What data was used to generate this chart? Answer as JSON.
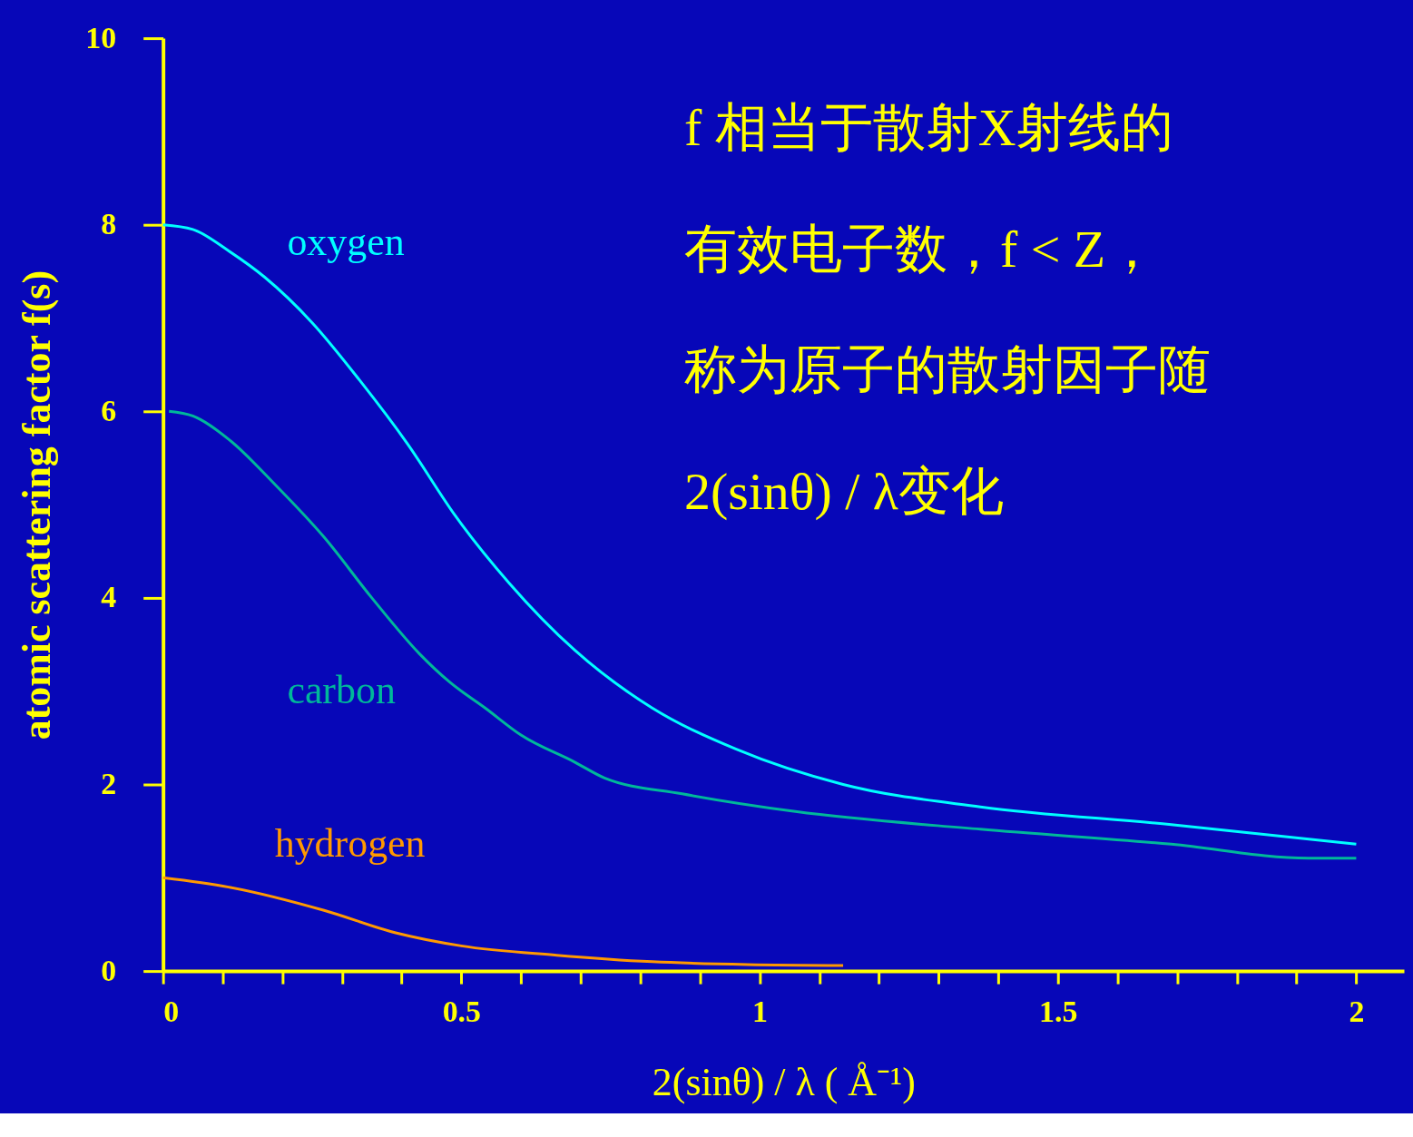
{
  "chart_data": {
    "type": "line",
    "xlabel": "2(sinθ) / λ ( Å⁻¹)",
    "ylabel": "atomic scattering factor  f(s)",
    "xlim": [
      0,
      2.08
    ],
    "ylim": [
      0,
      10
    ],
    "xticks": [
      0,
      {
        "value": 0.1,
        "label": null
      },
      {
        "value": 0.2,
        "label": null
      },
      {
        "value": 0.3,
        "label": null
      },
      {
        "value": 0.4,
        "label": null
      },
      0.5,
      {
        "value": 0.6,
        "label": null
      },
      {
        "value": 0.7,
        "label": null
      },
      {
        "value": 0.8,
        "label": null
      },
      {
        "value": 0.9,
        "label": null
      },
      1,
      {
        "value": 1.1,
        "label": null
      },
      {
        "value": 1.2,
        "label": null
      },
      {
        "value": 1.3,
        "label": null
      },
      {
        "value": 1.4,
        "label": null
      },
      1.5,
      {
        "value": 1.6,
        "label": null
      },
      {
        "value": 1.7,
        "label": null
      },
      {
        "value": 1.8,
        "label": null
      },
      {
        "value": 1.9,
        "label": null
      },
      2
    ],
    "yticks": [
      0,
      2,
      4,
      6,
      8,
      10
    ],
    "grid": false,
    "legend": false,
    "marker": "none",
    "line_style": "solid",
    "annotations": [
      "f 相当于散射X射线的",
      "有效电子数，f < Z，",
      "称为原子的散射因子随",
      "2(sinθ) / λ变化"
    ],
    "series": [
      {
        "name": "oxygen",
        "color": "#00ffff",
        "x": [
          0,
          0.05,
          0.11,
          0.17,
          0.25,
          0.33,
          0.41,
          0.49,
          0.58,
          0.69,
          0.82,
          0.96,
          1.14,
          1.37,
          1.69,
          2.0
        ],
        "values": [
          8.0,
          7.95,
          7.72,
          7.44,
          6.95,
          6.33,
          5.65,
          4.88,
          4.16,
          3.44,
          2.82,
          2.38,
          2.0,
          1.76,
          1.57,
          1.36
        ]
      },
      {
        "name": "carbon",
        "color": "#00b89a",
        "x": [
          0.01,
          0.05,
          0.11,
          0.19,
          0.27,
          0.35,
          0.43,
          0.48,
          0.54,
          0.6,
          0.69,
          0.74,
          0.87,
          1.06,
          1.37,
          1.69,
          1.92,
          2.0
        ],
        "values": [
          6.0,
          5.95,
          5.7,
          5.2,
          4.65,
          4.0,
          3.4,
          3.1,
          2.82,
          2.53,
          2.24,
          2.07,
          1.9,
          1.71,
          1.52,
          1.36,
          1.21,
          1.21
        ]
      },
      {
        "name": "hydrogen",
        "color": "#ff9900",
        "x": [
          0,
          0.11,
          0.27,
          0.39,
          0.5,
          0.66,
          0.82,
          0.98,
          1.14
        ],
        "values": [
          1.0,
          0.9,
          0.65,
          0.41,
          0.27,
          0.17,
          0.1,
          0.07,
          0.06
        ]
      }
    ]
  }
}
